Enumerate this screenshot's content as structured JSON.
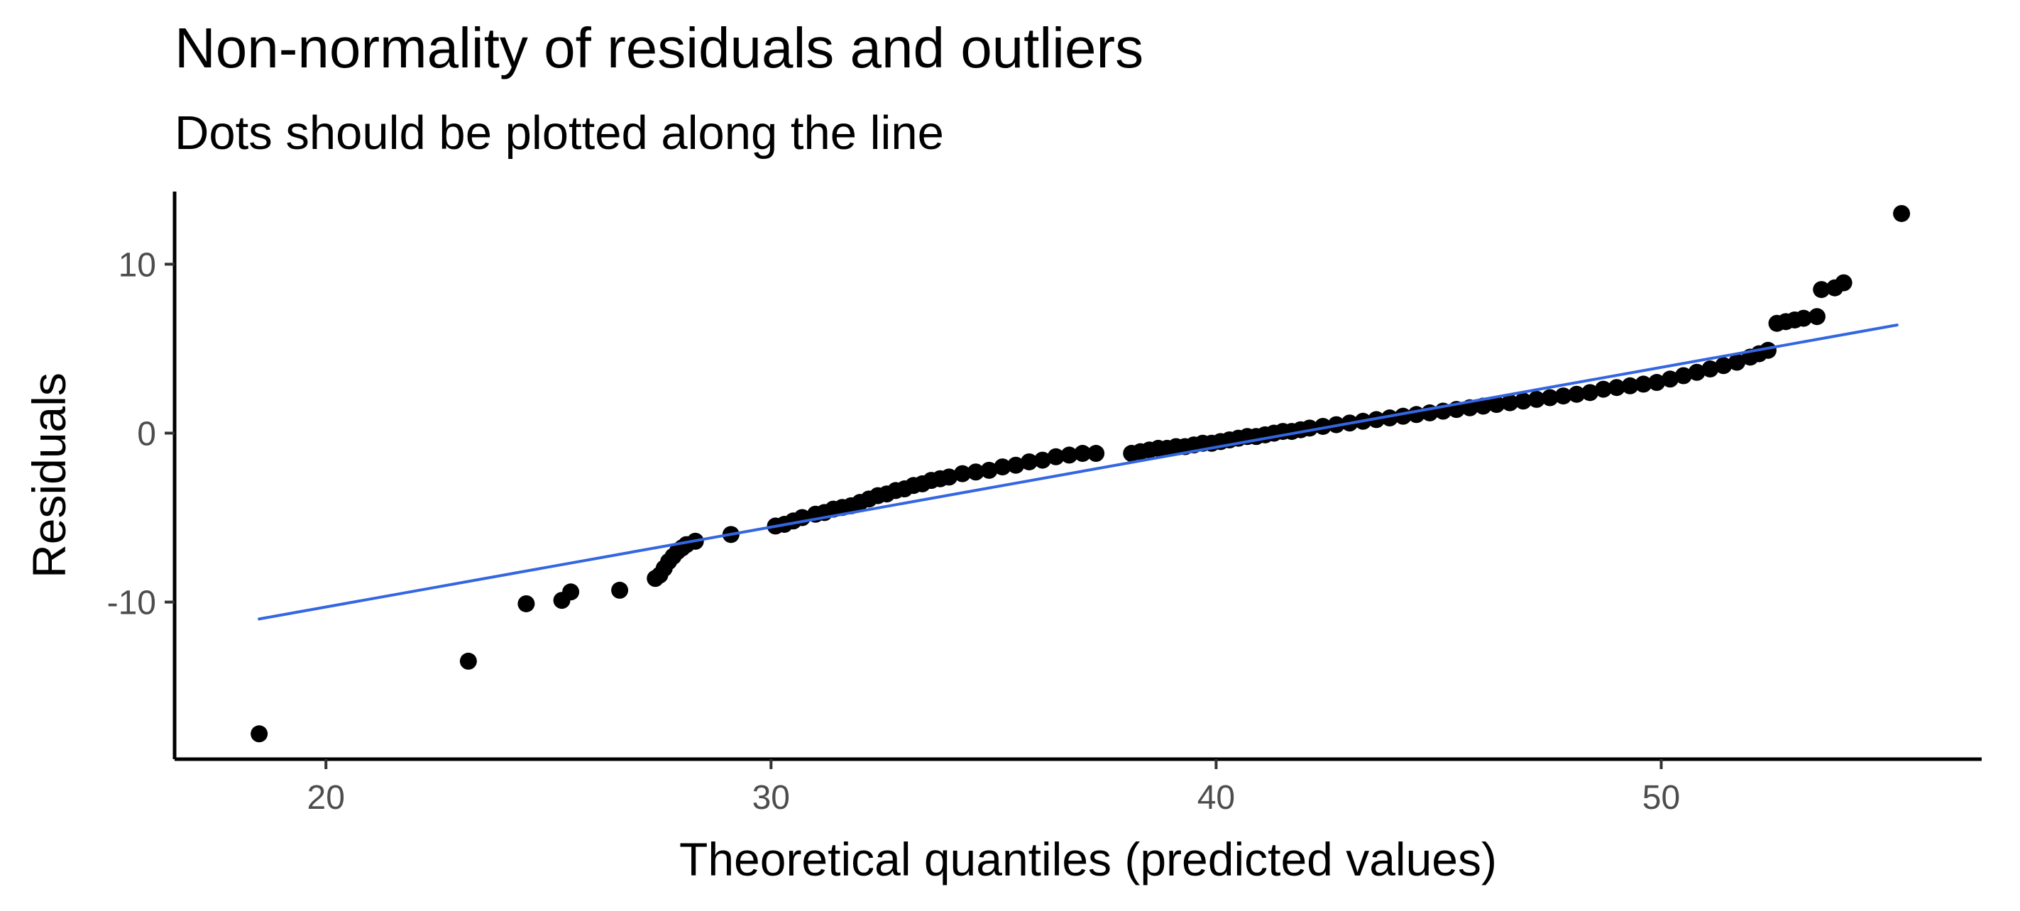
{
  "chart_data": {
    "type": "scatter",
    "title": "Non-normality of residuals and outliers",
    "subtitle": "Dots should be plotted along the line",
    "xlabel": "Theoretical quantiles (predicted values)",
    "ylabel": "Residuals",
    "xlim": [
      16.6,
      57.2
    ],
    "ylim": [
      -19.3,
      14.3
    ],
    "x_ticks": [
      20,
      30,
      40,
      50
    ],
    "y_ticks": [
      -10,
      0,
      10
    ],
    "x_tick_labels": [
      "20",
      "30",
      "40",
      "50"
    ],
    "y_tick_labels": [
      "-10",
      "0",
      "10"
    ],
    "grid": false,
    "point_color": "#000000",
    "line_color": "#3366e0",
    "reference_line": {
      "x": [
        18.5,
        55.3
      ],
      "y": [
        -11.0,
        6.4
      ]
    },
    "points": {
      "x": [
        18.5,
        23.2,
        24.5,
        25.3,
        25.5,
        26.6,
        27.4,
        27.5,
        27.6,
        27.7,
        27.8,
        27.9,
        28.0,
        28.1,
        28.3,
        29.1,
        30.1,
        30.3,
        30.5,
        30.7,
        31.0,
        31.2,
        31.4,
        31.6,
        31.8,
        32.0,
        32.2,
        32.4,
        32.6,
        32.8,
        33.0,
        33.2,
        33.4,
        33.6,
        33.8,
        34.0,
        34.3,
        34.6,
        34.9,
        35.2,
        35.5,
        35.8,
        36.1,
        36.4,
        36.7,
        37.0,
        37.3,
        38.1,
        38.3,
        38.5,
        38.7,
        38.9,
        39.1,
        39.3,
        39.5,
        39.7,
        39.9,
        40.1,
        40.3,
        40.5,
        40.7,
        40.9,
        41.1,
        41.3,
        41.5,
        41.7,
        41.9,
        42.1,
        42.4,
        42.7,
        43.0,
        43.3,
        43.6,
        43.9,
        44.2,
        44.5,
        44.8,
        45.1,
        45.4,
        45.7,
        46.0,
        46.3,
        46.6,
        46.9,
        47.2,
        47.5,
        47.8,
        48.1,
        48.4,
        48.7,
        49.0,
        49.3,
        49.6,
        49.9,
        50.2,
        50.5,
        50.8,
        51.1,
        51.4,
        51.7,
        52.0,
        52.2,
        52.4,
        52.6,
        52.8,
        53.0,
        53.2,
        53.5,
        53.6,
        53.9,
        54.1,
        55.4
      ],
      "y": [
        -17.8,
        -13.5,
        -10.1,
        -9.9,
        -9.4,
        -9.3,
        -8.6,
        -8.4,
        -8.0,
        -7.6,
        -7.3,
        -7.0,
        -6.8,
        -6.6,
        -6.4,
        -6.0,
        -5.5,
        -5.4,
        -5.2,
        -5.0,
        -4.8,
        -4.7,
        -4.5,
        -4.4,
        -4.3,
        -4.1,
        -3.9,
        -3.7,
        -3.6,
        -3.4,
        -3.3,
        -3.1,
        -3.0,
        -2.8,
        -2.7,
        -2.6,
        -2.4,
        -2.3,
        -2.2,
        -2.0,
        -1.9,
        -1.7,
        -1.6,
        -1.4,
        -1.3,
        -1.2,
        -1.2,
        -1.2,
        -1.1,
        -1.0,
        -0.9,
        -0.9,
        -0.8,
        -0.8,
        -0.7,
        -0.6,
        -0.6,
        -0.5,
        -0.4,
        -0.3,
        -0.2,
        -0.2,
        -0.1,
        0.0,
        0.1,
        0.1,
        0.2,
        0.3,
        0.4,
        0.5,
        0.6,
        0.7,
        0.8,
        0.9,
        1.0,
        1.1,
        1.2,
        1.3,
        1.4,
        1.5,
        1.6,
        1.7,
        1.8,
        1.9,
        2.0,
        2.1,
        2.2,
        2.3,
        2.4,
        2.6,
        2.7,
        2.8,
        2.9,
        3.0,
        3.2,
        3.4,
        3.6,
        3.8,
        4.0,
        4.2,
        4.5,
        4.7,
        4.9,
        6.5,
        6.6,
        6.7,
        6.8,
        6.9,
        8.5,
        8.6,
        8.9,
        13.0
      ]
    }
  }
}
